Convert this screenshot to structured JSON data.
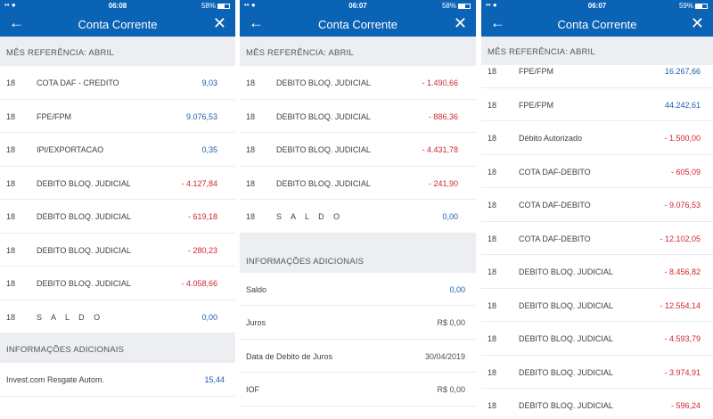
{
  "panels": [
    {
      "status": {
        "signal": "•• ●",
        "time": "06:08",
        "battery": "58%"
      },
      "title": "Conta Corrente",
      "section": "MÊS REFERÊNCIA: ABRIL",
      "rows": [
        {
          "day": "18",
          "desc": "COTA DAF - CREDITO",
          "amount": "9,03",
          "kind": "pos"
        },
        {
          "day": "18",
          "desc": "FPE/FPM",
          "amount": "9.076,53",
          "kind": "pos"
        },
        {
          "day": "18",
          "desc": "IPI/EXPORTACAO",
          "amount": "0,35",
          "kind": "pos"
        },
        {
          "day": "18",
          "desc": "DEBITO BLOQ. JUDICIAL",
          "amount": "- 4.127,84",
          "kind": "neg"
        },
        {
          "day": "18",
          "desc": "DEBITO BLOQ. JUDICIAL",
          "amount": "- 619,18",
          "kind": "neg"
        },
        {
          "day": "18",
          "desc": "DEBITO BLOQ. JUDICIAL",
          "amount": "- 280,23",
          "kind": "neg"
        },
        {
          "day": "18",
          "desc": "DEBITO BLOQ. JUDICIAL",
          "amount": "- 4.058,66",
          "kind": "neg"
        },
        {
          "day": "18",
          "desc": "S A L D O",
          "amount": "0,00",
          "kind": "pos"
        }
      ],
      "info_section": "INFORMAÇÕES ADICIONAIS",
      "info": [
        {
          "label": "Invest.com Resgate Autom.",
          "value": "15,44",
          "kind": "pos"
        }
      ]
    },
    {
      "status": {
        "signal": "•• ●",
        "time": "06:07",
        "battery": "58%"
      },
      "title": "Conta Corrente",
      "section": "MÊS REFERÊNCIA: ABRIL",
      "rows": [
        {
          "day": "18",
          "desc": "DEBITO BLOQ. JUDICIAL",
          "amount": "- 1.490,66",
          "kind": "neg"
        },
        {
          "day": "18",
          "desc": "DEBITO BLOQ. JUDICIAL",
          "amount": "- 886,36",
          "kind": "neg"
        },
        {
          "day": "18",
          "desc": "DEBITO BLOQ. JUDICIAL",
          "amount": "- 4.431,78",
          "kind": "neg"
        },
        {
          "day": "18",
          "desc": "DEBITO BLOQ. JUDICIAL",
          "amount": "- 241,90",
          "kind": "neg"
        },
        {
          "day": "18",
          "desc": "S A L D O",
          "amount": "0,00",
          "kind": "pos"
        }
      ],
      "info_section": "INFORMAÇÕES ADICIONAIS",
      "info": [
        {
          "label": "Saldo",
          "value": "0,00",
          "kind": "pos"
        },
        {
          "label": "Juros",
          "value": "R$ 0,00",
          "kind": "neutral"
        },
        {
          "label": "Data de Debito de Juros",
          "value": "30/04/2019",
          "kind": "neutral"
        },
        {
          "label": "IOF",
          "value": "R$ 0,00",
          "kind": "neutral"
        }
      ]
    },
    {
      "status": {
        "signal": "•• ●",
        "time": "06:07",
        "battery": "59%"
      },
      "title": "Conta Corrente",
      "section": "MÊS REFERÊNCIA: ABRIL",
      "rows": [
        {
          "day": "18",
          "desc": "FPE/FPM",
          "amount": "16.267,66",
          "kind": "pos"
        },
        {
          "day": "18",
          "desc": "FPE/FPM",
          "amount": "44.242,61",
          "kind": "pos"
        },
        {
          "day": "18",
          "desc": "Débito Autorizado",
          "amount": "- 1.500,00",
          "kind": "neg"
        },
        {
          "day": "18",
          "desc": "COTA DAF-DEBITO",
          "amount": "- 605,09",
          "kind": "neg"
        },
        {
          "day": "18",
          "desc": "COTA DAF-DEBITO",
          "amount": "- 9.076,53",
          "kind": "neg"
        },
        {
          "day": "18",
          "desc": "COTA DAF-DEBITO",
          "amount": "- 12.102,05",
          "kind": "neg"
        },
        {
          "day": "18",
          "desc": "DEBITO BLOQ. JUDICIAL",
          "amount": "- 8.456,82",
          "kind": "neg"
        },
        {
          "day": "18",
          "desc": "DEBITO BLOQ. JUDICIAL",
          "amount": "- 12.554,14",
          "kind": "neg"
        },
        {
          "day": "18",
          "desc": "DEBITO BLOQ. JUDICIAL",
          "amount": "- 4.593,79",
          "kind": "neg"
        },
        {
          "day": "18",
          "desc": "DEBITO BLOQ. JUDICIAL",
          "amount": "- 3.974,91",
          "kind": "neg"
        },
        {
          "day": "18",
          "desc": "DEBITO BLOQ. JUDICIAL",
          "amount": "- 596,24",
          "kind": "neg"
        }
      ]
    }
  ],
  "icons": {
    "back": "arrow-left-icon",
    "close": "close-icon",
    "signal": "signal-icon",
    "battery": "battery-icon"
  },
  "colors": {
    "header": "#0b63b5",
    "positive": "#1b5ea8",
    "negative": "#d0262c",
    "section_bg": "#eceef1"
  }
}
